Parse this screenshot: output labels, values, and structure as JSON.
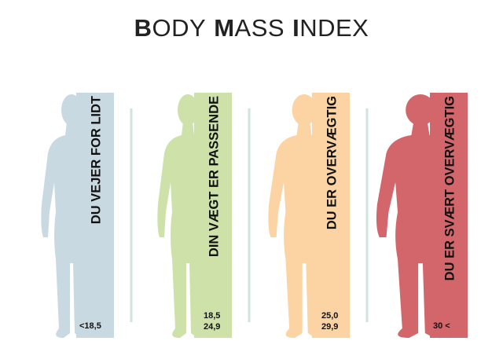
{
  "header": {
    "title": [
      "BODY",
      "MASS",
      "INDEX"
    ]
  },
  "panels": [
    {
      "label": "DU VEJER FOR LIDT",
      "range": [
        "<18,5"
      ],
      "color": "#c9d9e2"
    },
    {
      "label": "DIN VÆGT ER PASSENDE",
      "range": [
        "18,5",
        "24,9"
      ],
      "color": "#cde1a9"
    },
    {
      "label": "DU ER OVERVÆGTIG",
      "range": [
        "25,0",
        "29,9"
      ],
      "color": "#fcd3a3"
    },
    {
      "label": "DU ER SVÆRT OVERVÆGTIG",
      "range": [
        "30 <"
      ],
      "color": "#d3666b"
    }
  ]
}
